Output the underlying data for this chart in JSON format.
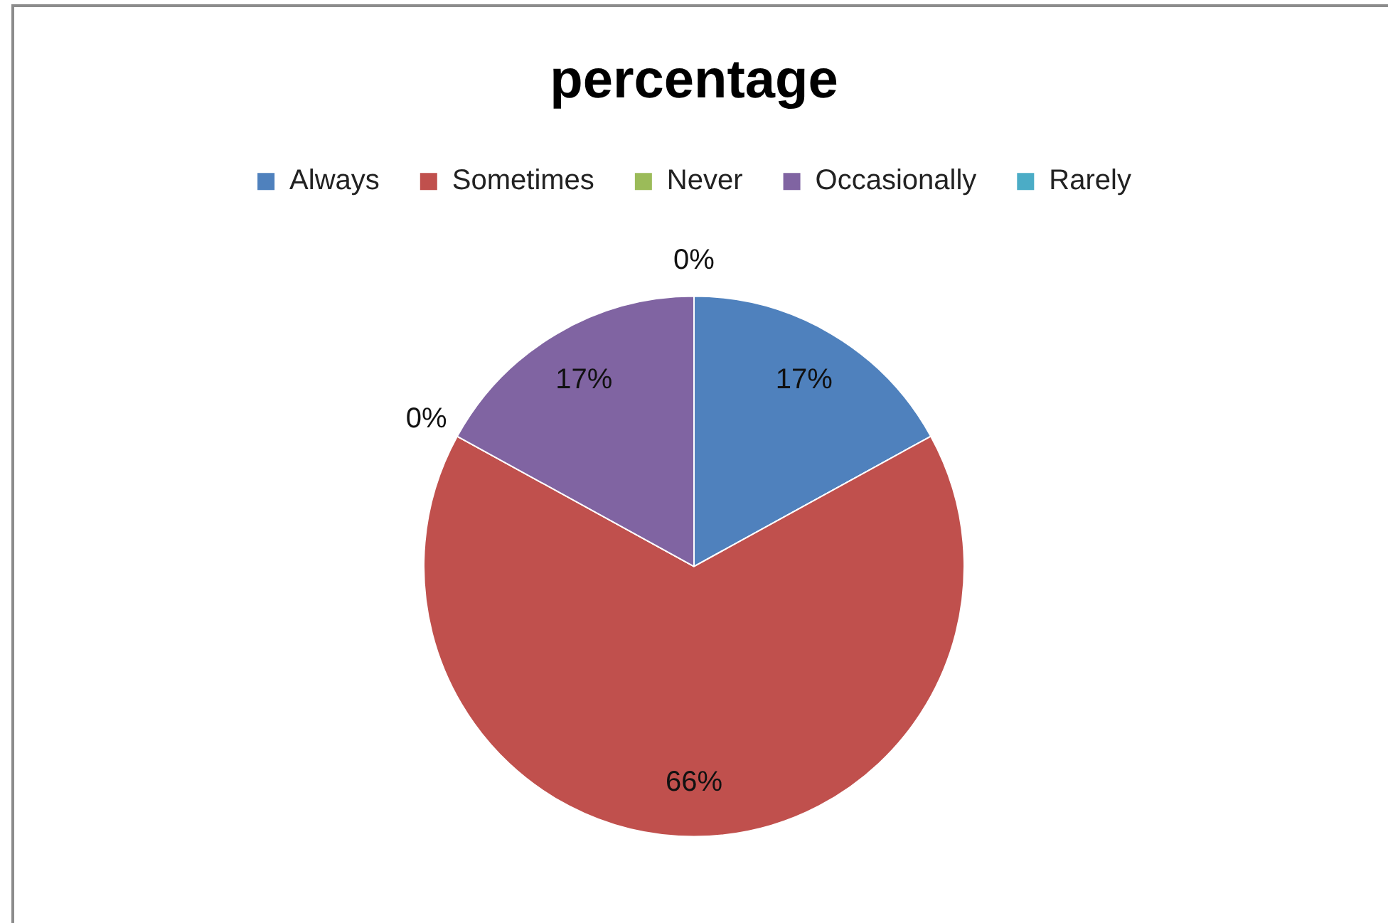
{
  "chart_data": {
    "type": "pie",
    "title": "percentage",
    "categories": [
      "Always",
      "Sometimes",
      "Never",
      "Occasionally",
      "Rarely"
    ],
    "values": [
      17,
      66,
      0,
      17,
      0
    ],
    "colors": [
      "#4f81bd",
      "#c0504d",
      "#9bbb59",
      "#8064a2",
      "#4bacc6"
    ],
    "value_labels": [
      "17%",
      "66%",
      "0%",
      "17%",
      "0%"
    ],
    "legend": "top"
  }
}
